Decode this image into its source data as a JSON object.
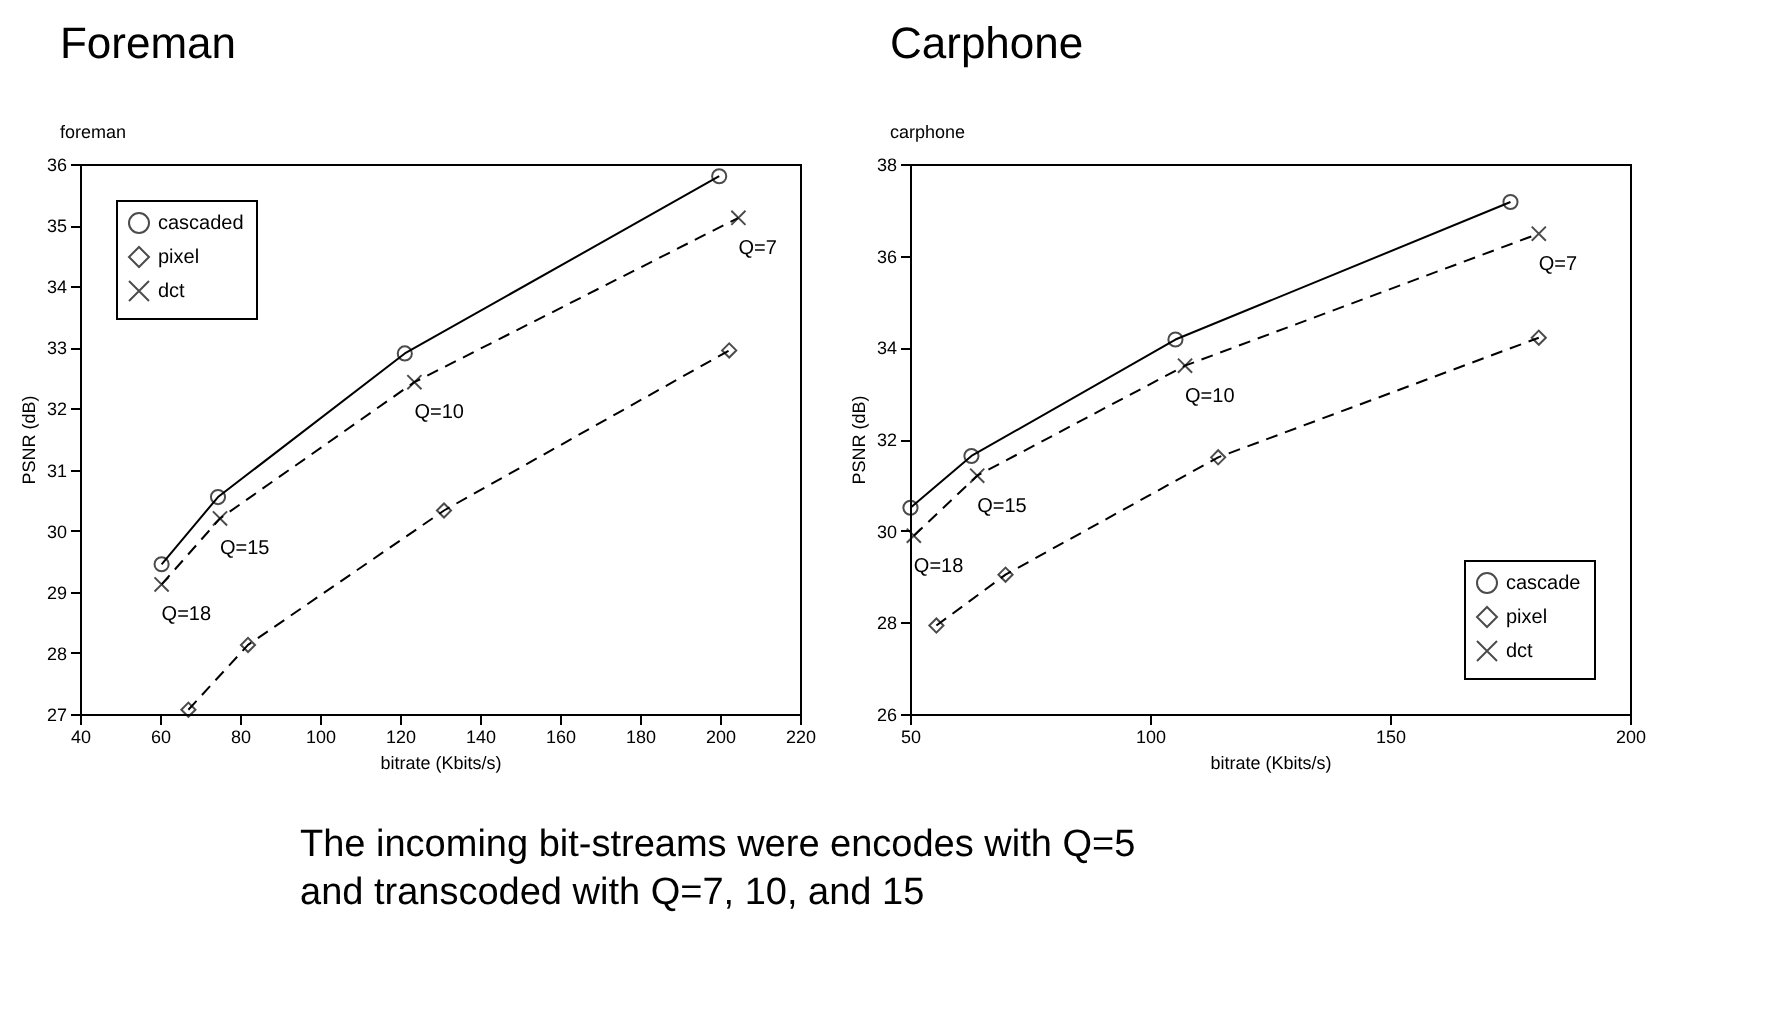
{
  "chart_data": [
    {
      "type": "line",
      "title": "Foreman",
      "subtitle": "foreman",
      "xlabel": "bitrate (Kbits/s)",
      "ylabel": "PSNR (dB)",
      "xlim": [
        40,
        220
      ],
      "xticks": [
        40,
        60,
        80,
        100,
        120,
        140,
        160,
        180,
        200,
        220
      ],
      "ylim": [
        27,
        36
      ],
      "yticks": [
        27,
        28,
        29,
        30,
        31,
        32,
        33,
        34,
        35,
        36
      ],
      "grid": false,
      "legend": "top left",
      "series": [
        {
          "name": "cascaded",
          "color": "#000000",
          "marker": "circle",
          "line_style": "solid",
          "x": [
            60.4,
            74.5,
            121.2,
            199.8
          ],
          "values": [
            29.45,
            30.55,
            32.9,
            35.8
          ]
        },
        {
          "name": "pixel",
          "color": "#000000",
          "marker": "diamond",
          "line_style": "dashed",
          "x": [
            67.1,
            82,
            131,
            202.3
          ],
          "values": [
            27.07,
            28.13,
            30.33,
            32.95
          ]
        },
        {
          "name": "dct",
          "color": "#000000",
          "marker": "cross",
          "line_style": "dashed",
          "x": [
            60.4,
            75,
            123.6,
            204.6
          ],
          "values": [
            29.12,
            30.2,
            32.43,
            35.12
          ]
        }
      ],
      "annotations": [
        {
          "text": "Q=18",
          "x": 60.4,
          "y": 29.12
        },
        {
          "text": "Q=15",
          "x": 75,
          "y": 30.2
        },
        {
          "text": "Q=10",
          "x": 123.6,
          "y": 32.43
        },
        {
          "text": "Q=7",
          "x": 204.6,
          "y": 35.12
        }
      ]
    },
    {
      "type": "line",
      "title": "Carphone",
      "subtitle": "carphone",
      "xlabel": "bitrate (Kbits/s)",
      "ylabel": "PSNR (dB)",
      "xlim": [
        50,
        200
      ],
      "xticks": [
        50,
        100,
        150,
        200
      ],
      "ylim": [
        26,
        38
      ],
      "yticks": [
        26,
        28,
        30,
        32,
        34,
        36,
        38
      ],
      "grid": false,
      "legend": "bottom right",
      "series": [
        {
          "name": "cascade",
          "color": "#000000",
          "marker": "circle",
          "line_style": "solid",
          "x": [
            50.1,
            62.8,
            105.3,
            175.1
          ],
          "values": [
            30.5,
            31.63,
            34.17,
            37.17
          ]
        },
        {
          "name": "pixel",
          "color": "#000000",
          "marker": "diamond",
          "line_style": "dashed",
          "x": [
            55.5,
            69.9,
            114.2,
            181
          ],
          "values": [
            27.93,
            29.04,
            31.6,
            34.21
          ]
        },
        {
          "name": "dct",
          "color": "#000000",
          "marker": "cross",
          "line_style": "dashed",
          "x": [
            50.8,
            64,
            107.3,
            181
          ],
          "values": [
            29.89,
            31.2,
            33.6,
            36.48
          ]
        }
      ],
      "annotations": [
        {
          "text": "Q=18",
          "x": 50.8,
          "y": 29.89
        },
        {
          "text": "Q=15",
          "x": 64,
          "y": 31.2
        },
        {
          "text": "Q=10",
          "x": 107.3,
          "y": 33.6
        },
        {
          "text": "Q=7",
          "x": 181,
          "y": 36.48
        },
        "The incoming bit-streams were encodes with Q=5",
        "and transcoded with Q=7, 10, and 15"
      ]
    }
  ]
}
